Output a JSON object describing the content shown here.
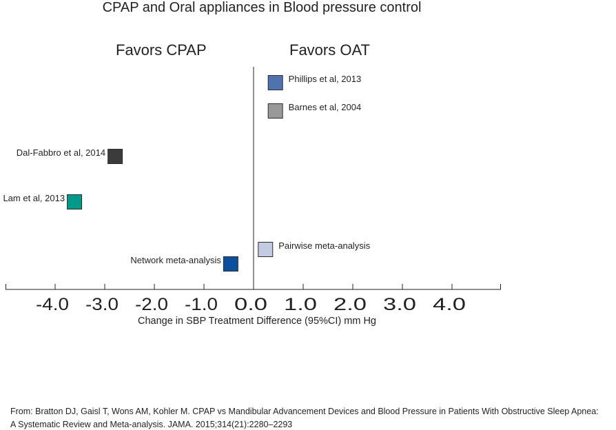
{
  "chart_data": {
    "type": "scatter",
    "title": "CPAP and Oral appliances in Blood pressure control",
    "annotations": {
      "left": "Favors  CPAP",
      "right": "Favors  OAT"
    },
    "xlabel": "Change in SBP Treatment Difference (95%CI) mm Hg",
    "ylabel": "",
    "xlim": [
      -5.0,
      5.0
    ],
    "xticks": [
      -4,
      -3,
      -2,
      -1,
      0,
      1,
      2,
      3,
      4
    ],
    "xtick_labels": [
      "-4.0",
      "-3.0",
      "-2.0",
      "-1.0",
      "0.0",
      "1.0",
      "2.0",
      "3.0",
      "4.0"
    ],
    "grid": false,
    "reference_line": 0,
    "points": [
      {
        "label": "Phillips et al, 2013",
        "x": 0.44,
        "color": "#4f72b0"
      },
      {
        "label": "Barnes et al, 2004",
        "x": 0.44,
        "color": "#999999"
      },
      {
        "label": "Dal-Fabbro et al, 2014",
        "x": -2.79,
        "color": "#3b3b3b"
      },
      {
        "label": "Lam et al, 2013",
        "x": -3.61,
        "color": "#00998a"
      },
      {
        "label": "Pairwise meta-analysis",
        "x": 0.24,
        "color": "#c3cbe3"
      },
      {
        "label": "Network meta-analysis",
        "x": -0.46,
        "color": "#0b4f9d"
      }
    ]
  },
  "footer": {
    "line1": "From: Bratton DJ, Gaisl T, Wons AM, Kohler M. CPAP vs Mandibular Advancement Devices and Blood Pressure in Patients With Obstructive Sleep Apnea:",
    "line2": "A Systematic Review and Meta-analysis. JAMA. 2015;314(21):2280–2293"
  }
}
